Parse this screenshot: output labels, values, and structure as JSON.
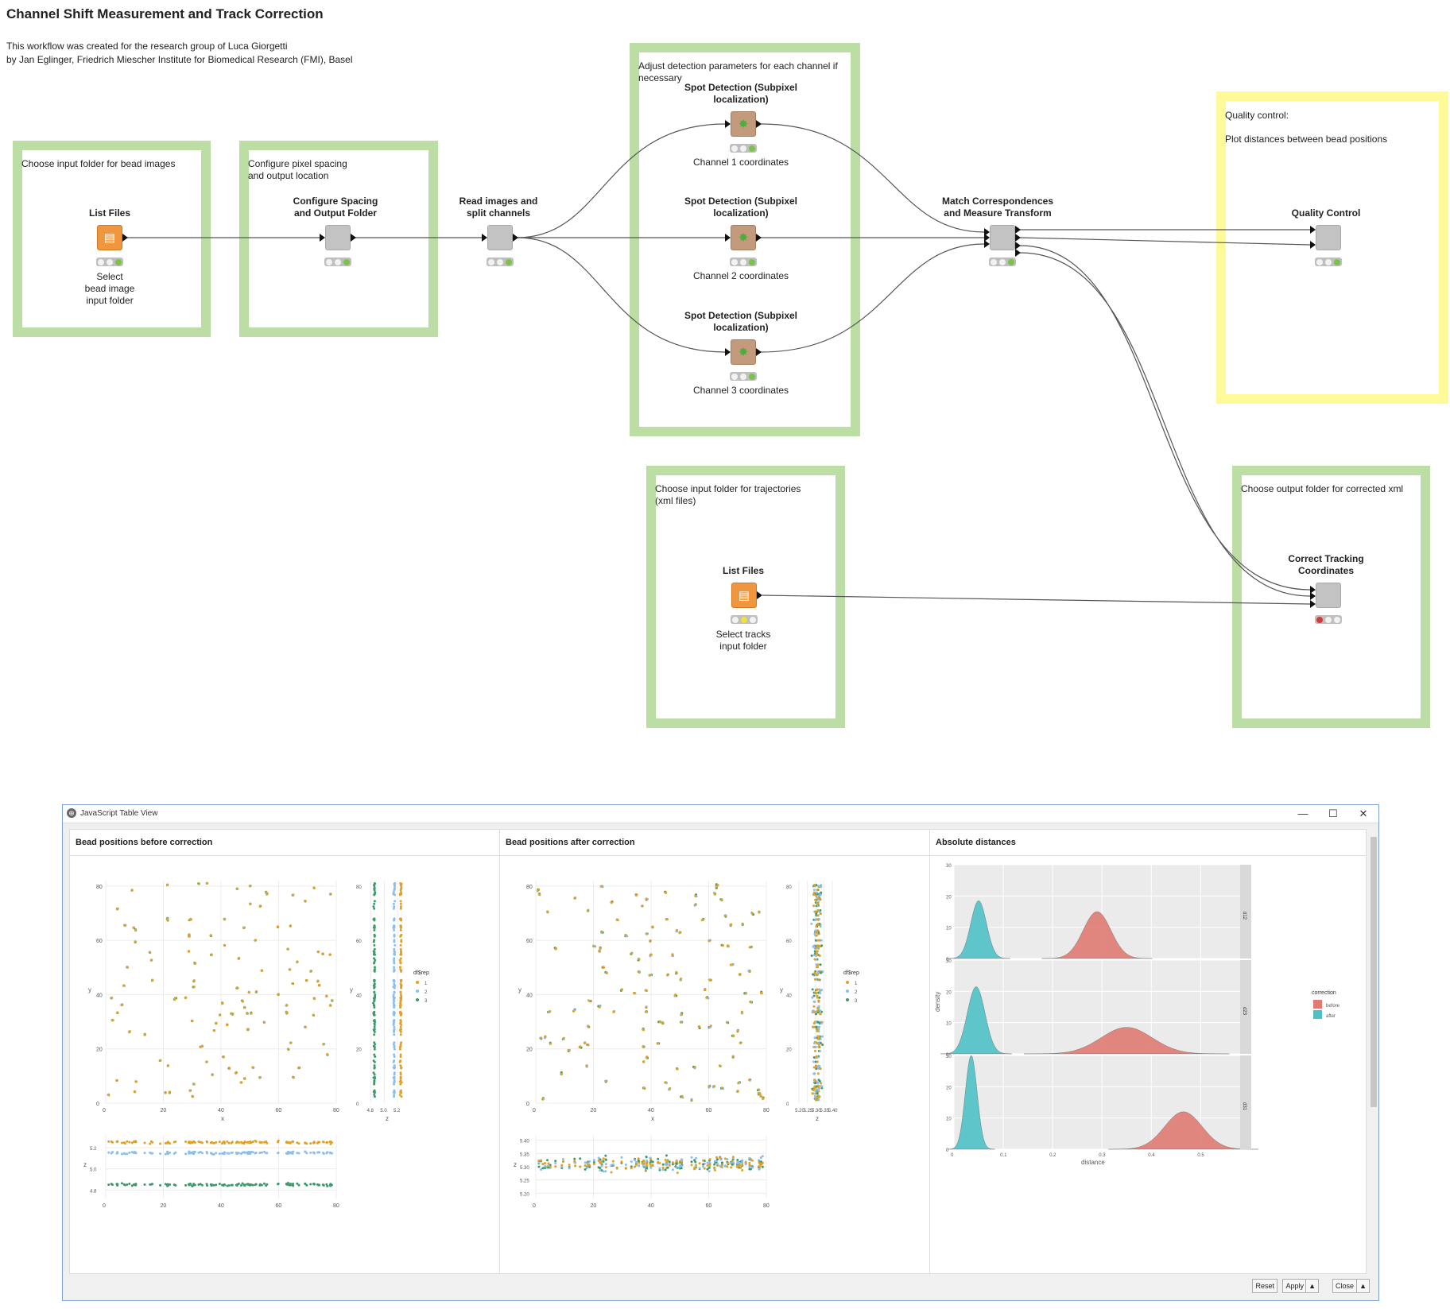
{
  "workflow": {
    "title": "Channel Shift Measurement and Track Correction",
    "credit_line1": "This workflow was created for the research group of Luca Giorgetti",
    "credit_line2": "by Jan Eglinger, Friedrich Miescher Institute for Biomedical Research (FMI), Basel"
  },
  "annotations": [
    {
      "text": "Choose input folder for bead images",
      "color": "#bcdda3"
    },
    {
      "text": "Configure pixel spacing\nand output location",
      "color": "#bcdda3"
    },
    {
      "text": "Adjust detection parameters for each channel if\nnecessary",
      "color": "#bcdda3"
    },
    {
      "text": "Quality control:\n\nPlot distances between bead positions",
      "color": "#fefa9a"
    },
    {
      "text": "Choose input folder for trajectories\n(xml files)",
      "color": "#bcdda3"
    },
    {
      "text": "Choose output folder for corrected xml",
      "color": "#bcdda3"
    }
  ],
  "nodes": [
    {
      "label": "List Files",
      "sub": "Select\nbead image\ninput folder",
      "type": "orange",
      "status": [
        "off",
        "off",
        "green"
      ]
    },
    {
      "label": "Configure Spacing\nand Output Folder",
      "sub": "",
      "type": "gray",
      "status": [
        "off",
        "off",
        "green"
      ]
    },
    {
      "label": "Read images and\nsplit channels",
      "sub": "",
      "type": "gray",
      "status": [
        "off",
        "off",
        "green"
      ]
    },
    {
      "label": "Spot Detection (Subpixel\nlocalization)",
      "sub": "Channel 1 coordinates",
      "type": "brown",
      "status": [
        "off",
        "off",
        "green"
      ]
    },
    {
      "label": "Spot Detection (Subpixel\nlocalization)",
      "sub": "Channel 2 coordinates",
      "type": "brown",
      "status": [
        "off",
        "off",
        "green"
      ]
    },
    {
      "label": "Spot Detection (Subpixel\nlocalization)",
      "sub": "Channel 3 coordinates",
      "type": "brown",
      "status": [
        "off",
        "off",
        "green"
      ]
    },
    {
      "label": "Match Correspondences\nand Measure Transform",
      "sub": "",
      "type": "gray",
      "status": [
        "off",
        "off",
        "green"
      ]
    },
    {
      "label": "Quality Control",
      "sub": "",
      "type": "gray",
      "status": [
        "off",
        "off",
        "green"
      ]
    },
    {
      "label": "List Files",
      "sub": "Select tracks\ninput folder",
      "type": "orange",
      "status": [
        "off",
        "yellow",
        "off"
      ]
    },
    {
      "label": "Correct Tracking\nCoordinates",
      "sub": "",
      "type": "gray",
      "status": [
        "red",
        "off",
        "off"
      ]
    }
  ],
  "view": {
    "window_title": "JavaScript Table View",
    "minimize": "—",
    "maximize": "☐",
    "close": "✕",
    "panels": [
      {
        "title": "Bead positions before correction"
      },
      {
        "title": "Bead positions after correction"
      },
      {
        "title": "Absolute distances"
      }
    ],
    "buttons": {
      "reset": "Reset",
      "apply": "Apply",
      "close": "Close",
      "arrow": "▲"
    }
  },
  "chart_data": [
    {
      "type": "scatter",
      "panel": "before",
      "xlabel": "x",
      "ylabel": "y",
      "xlim": [
        0,
        80
      ],
      "ylim": [
        0,
        82
      ],
      "xticks": [
        0,
        20,
        40,
        60,
        80
      ],
      "yticks": [
        0,
        20,
        40,
        60,
        80
      ],
      "legend_title": "df$rep",
      "legend": [
        "1",
        "2",
        "3"
      ],
      "series_colors": [
        "#e0a125",
        "#8dbfea",
        "#3d9a6b"
      ],
      "side_xlabel": "z",
      "side_xticks": [
        "4.8",
        "5.0",
        "5.2"
      ],
      "bottom_ylabel": "z",
      "bottom_yticks": [
        "4.8",
        "5.0",
        "5.2"
      ],
      "bottom_xticks": [
        0,
        20,
        40,
        60,
        80
      ],
      "z_levels": [
        5.25,
        5.15,
        4.85
      ]
    },
    {
      "type": "scatter",
      "panel": "after",
      "xlabel": "x",
      "ylabel": "y",
      "xlim": [
        0,
        80
      ],
      "ylim": [
        0,
        82
      ],
      "xticks": [
        0,
        20,
        40,
        60,
        80
      ],
      "yticks": [
        0,
        20,
        40,
        60,
        80
      ],
      "legend_title": "df$rep",
      "legend": [
        "1",
        "2",
        "3"
      ],
      "series_colors": [
        "#e0a125",
        "#8dbfea",
        "#3d9a6b"
      ],
      "side_xlabel": "z",
      "side_xticks": [
        "5.20",
        "5.25",
        "5.30",
        "5.35",
        "5.40"
      ],
      "bottom_ylabel": "z",
      "bottom_yticks": [
        "5.20",
        "5.25",
        "5.30",
        "5.35",
        "5.40"
      ],
      "bottom_xticks": [
        0,
        20,
        40,
        60,
        80
      ],
      "z_mean": 5.31
    },
    {
      "type": "area",
      "panel": "distances",
      "xlabel": "distance",
      "ylabel": "density",
      "xlim": [
        0,
        0.58
      ],
      "ylim": [
        0,
        30
      ],
      "xticks": [
        "0",
        "0.1",
        "0.2",
        "0.3",
        "0.4",
        "0.5"
      ],
      "yticks": [
        0,
        10,
        20,
        30
      ],
      "legend_title": "correction",
      "legend": [
        {
          "name": "before",
          "color": "#e07b73"
        },
        {
          "name": "after",
          "color": "#4fc1c6"
        }
      ],
      "facets": [
        {
          "strip": "d12",
          "after": {
            "mean": 0.05,
            "sd": 0.016,
            "peak": 18.5
          },
          "before": {
            "mean": 0.29,
            "sd": 0.028,
            "peak": 15
          }
        },
        {
          "strip": "d23",
          "after": {
            "mean": 0.045,
            "sd": 0.018,
            "peak": 21.5
          },
          "before": {
            "mean": 0.35,
            "sd": 0.052,
            "peak": 8.5
          }
        },
        {
          "strip": "d31",
          "after": {
            "mean": 0.035,
            "sd": 0.012,
            "peak": 30
          },
          "before": {
            "mean": 0.465,
            "sd": 0.038,
            "peak": 12
          }
        }
      ]
    }
  ]
}
